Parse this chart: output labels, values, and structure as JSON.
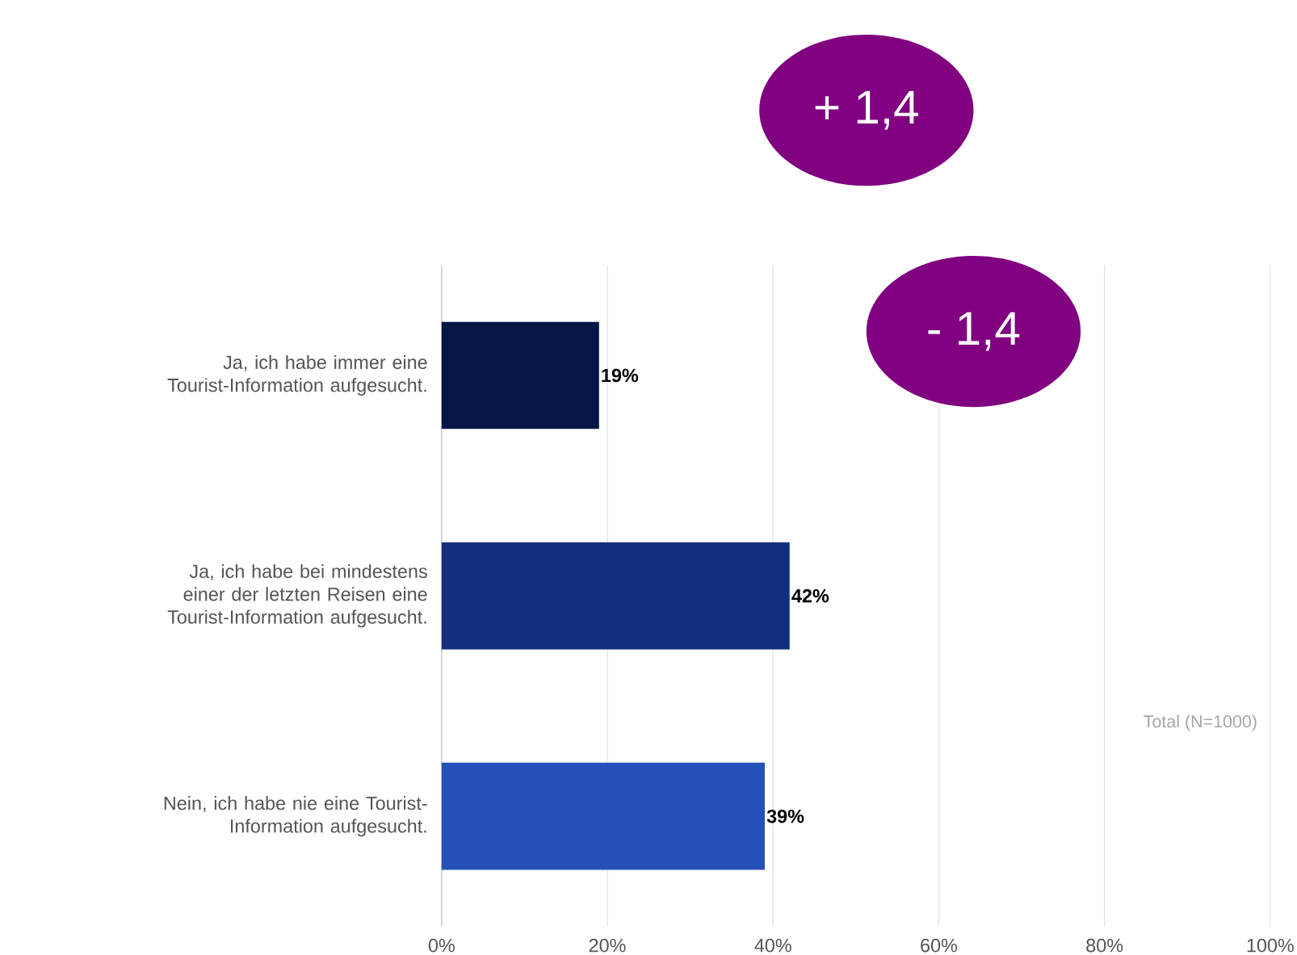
{
  "chart_data": {
    "type": "bar",
    "orientation": "horizontal",
    "categories": [
      "Ja, ich habe immer eine Tourist-Information aufgesucht.",
      "Ja, ich habe bei mindestens einer der letzten Reisen eine Tourist-Information aufgesucht.",
      "Nein, ich habe nie eine Tourist-Information aufgesucht."
    ],
    "values": [
      19,
      42,
      39
    ],
    "colors": [
      "#061746",
      "#12307f",
      "#2550b8"
    ],
    "value_labels": [
      "19%",
      "42%",
      "39%"
    ],
    "xlim": [
      0,
      100
    ],
    "xticks": [
      {
        "value": 0,
        "label": "0%"
      },
      {
        "value": 20,
        "label": "20%"
      },
      {
        "value": 40,
        "label": "40%"
      },
      {
        "value": 60,
        "label": "60%"
      },
      {
        "value": 80,
        "label": "80%"
      },
      {
        "value": 100,
        "label": "100%"
      }
    ],
    "grid": "x",
    "annotations": [
      "+ 1,4",
      "- 1,4",
      "Total (N=1000)"
    ]
  }
}
